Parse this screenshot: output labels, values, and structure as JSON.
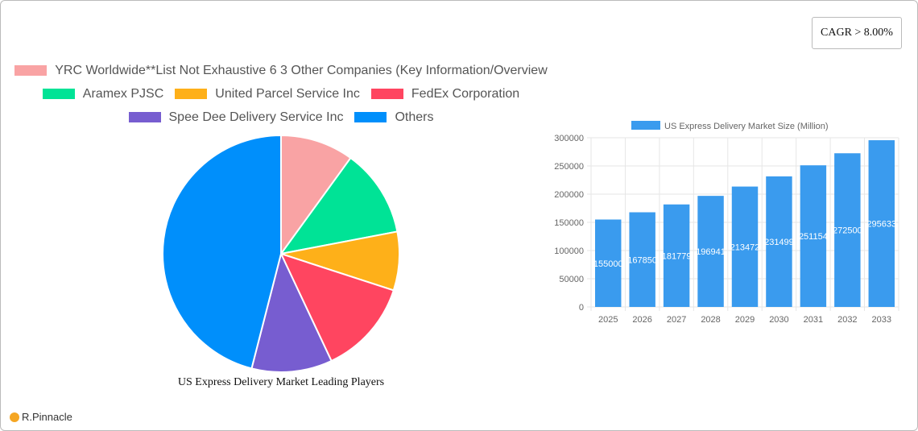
{
  "cagr_badge": "CAGR > 8.00%",
  "logo_text": "R.Pinnacle",
  "chart_data": [
    {
      "type": "pie",
      "title": "US Express Delivery Market Leading Players",
      "legend_position": "top",
      "labels": [
        "YRC Worldwide**List Not Exhaustive 6 3 Other Companies (Key Information/Overview",
        "Aramex PJSC",
        "United Parcel Service Inc",
        "FedEx Corporation",
        "Spee Dee Delivery Service Inc",
        "Others"
      ],
      "values": [
        10,
        12,
        8,
        13,
        11,
        46
      ],
      "colors": [
        "#f9a3a4",
        "#00e396",
        "#feb019",
        "#ff4560",
        "#775dd0",
        "#008ffb"
      ]
    },
    {
      "type": "bar",
      "legend_position": "top",
      "grid": true,
      "categories": [
        "2025",
        "2026",
        "2027",
        "2028",
        "2029",
        "2030",
        "2031",
        "2032",
        "2033"
      ],
      "series": [
        {
          "name": "US Express Delivery Market Size (Million)",
          "values": [
            155000,
            167850,
            181779,
            196941,
            213472,
            231499,
            251154,
            272500,
            295633
          ],
          "color": "#3a9bee"
        }
      ],
      "ylim": [
        0,
        300000
      ],
      "yticks": [
        0,
        50000,
        100000,
        150000,
        200000,
        250000,
        300000
      ]
    }
  ]
}
